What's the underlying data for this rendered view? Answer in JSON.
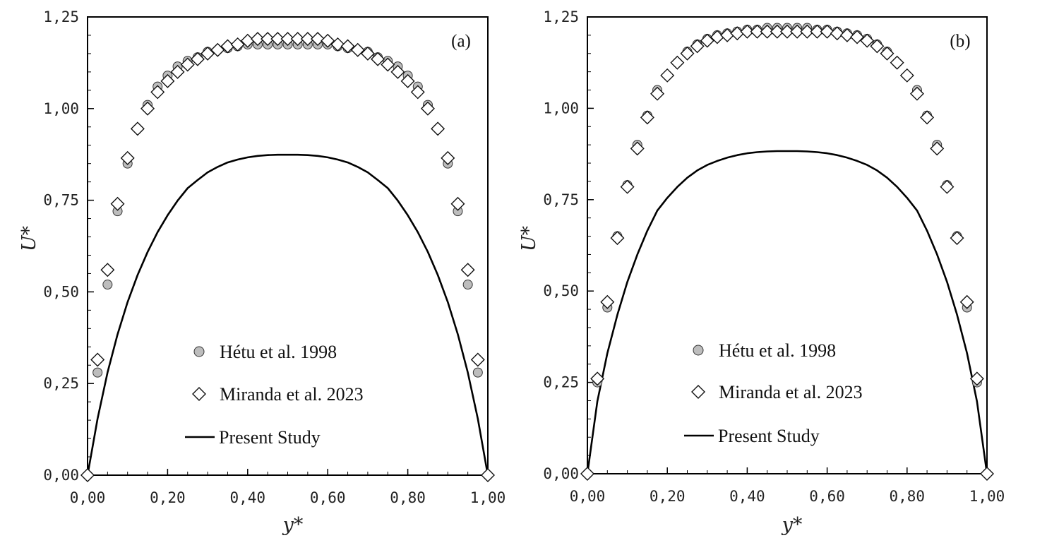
{
  "chart_data": [
    {
      "type": "scatter",
      "panel_label": "(a)",
      "xlabel": "y*",
      "ylabel": "U*",
      "xlim": [
        0,
        1
      ],
      "ylim": [
        0,
        1.25
      ],
      "x_ticks": [
        "0,00",
        "0,20",
        "0,40",
        "0,60",
        "0,80",
        "1,00"
      ],
      "y_ticks": [
        "0,00",
        "0,25",
        "0,50",
        "0,75",
        "1,00",
        "1,25"
      ],
      "legend_placement": "lower-center",
      "series": [
        {
          "name": "Hétu et al. 1998",
          "marker": "circle",
          "color": "#bdbdbd",
          "x": [
            0.0,
            0.025,
            0.05,
            0.075,
            0.1,
            0.125,
            0.15,
            0.175,
            0.2,
            0.225,
            0.25,
            0.275,
            0.3,
            0.325,
            0.35,
            0.375,
            0.4,
            0.425,
            0.45,
            0.475,
            0.5,
            0.525,
            0.55,
            0.575,
            0.6,
            0.625,
            0.65,
            0.675,
            0.7,
            0.725,
            0.75,
            0.775,
            0.8,
            0.825,
            0.85,
            0.875,
            0.9,
            0.925,
            0.95,
            0.975,
            1.0
          ],
          "y": [
            0.0,
            0.28,
            0.52,
            0.72,
            0.85,
            0.945,
            1.01,
            1.06,
            1.09,
            1.115,
            1.13,
            1.14,
            1.155,
            1.16,
            1.165,
            1.17,
            1.175,
            1.175,
            1.175,
            1.175,
            1.175,
            1.175,
            1.175,
            1.175,
            1.175,
            1.17,
            1.165,
            1.16,
            1.155,
            1.14,
            1.13,
            1.115,
            1.09,
            1.06,
            1.01,
            0.945,
            0.85,
            0.72,
            0.52,
            0.28,
            0.0
          ]
        },
        {
          "name": "Miranda et al. 2023",
          "marker": "diamond",
          "color": "#ffffff",
          "x": [
            0.0,
            0.025,
            0.05,
            0.075,
            0.1,
            0.125,
            0.15,
            0.175,
            0.2,
            0.225,
            0.25,
            0.275,
            0.3,
            0.325,
            0.35,
            0.375,
            0.4,
            0.425,
            0.45,
            0.475,
            0.5,
            0.525,
            0.55,
            0.575,
            0.6,
            0.625,
            0.65,
            0.675,
            0.7,
            0.725,
            0.75,
            0.775,
            0.8,
            0.825,
            0.85,
            0.875,
            0.9,
            0.925,
            0.95,
            0.975,
            1.0
          ],
          "y": [
            0.0,
            0.315,
            0.56,
            0.74,
            0.865,
            0.945,
            1.0,
            1.045,
            1.075,
            1.1,
            1.12,
            1.135,
            1.15,
            1.16,
            1.17,
            1.175,
            1.185,
            1.19,
            1.19,
            1.19,
            1.19,
            1.19,
            1.19,
            1.19,
            1.185,
            1.175,
            1.17,
            1.16,
            1.15,
            1.135,
            1.12,
            1.1,
            1.075,
            1.045,
            1.0,
            0.945,
            0.865,
            0.74,
            0.56,
            0.315,
            0.0
          ]
        },
        {
          "name": "Present Study",
          "marker": "line",
          "color": "#000000",
          "x": [
            0.0,
            0.025,
            0.05,
            0.075,
            0.1,
            0.125,
            0.15,
            0.175,
            0.2,
            0.225,
            0.25,
            0.275,
            0.3,
            0.325,
            0.35,
            0.375,
            0.4,
            0.425,
            0.45,
            0.475,
            0.5,
            0.525,
            0.55,
            0.575,
            0.6,
            0.625,
            0.65,
            0.675,
            0.7,
            0.725,
            0.75,
            0.775,
            0.8,
            0.825,
            0.85,
            0.875,
            0.9,
            0.925,
            0.95,
            0.975,
            1.0
          ],
          "y": [
            0.0,
            0.154,
            0.28,
            0.384,
            0.472,
            0.546,
            0.609,
            0.663,
            0.709,
            0.749,
            0.783,
            0.805,
            0.826,
            0.841,
            0.853,
            0.861,
            0.867,
            0.871,
            0.873,
            0.874,
            0.874,
            0.874,
            0.873,
            0.871,
            0.867,
            0.861,
            0.853,
            0.841,
            0.826,
            0.805,
            0.783,
            0.749,
            0.709,
            0.663,
            0.609,
            0.546,
            0.472,
            0.384,
            0.28,
            0.154,
            0.0
          ]
        }
      ]
    },
    {
      "type": "scatter",
      "panel_label": "(b)",
      "xlabel": "y*",
      "ylabel": "U*",
      "xlim": [
        0,
        1
      ],
      "ylim": [
        0,
        1.25
      ],
      "x_ticks": [
        "0,00",
        "0,20",
        "0,40",
        "0,60",
        "0,80",
        "1,00"
      ],
      "y_ticks": [
        "0,00",
        "0,25",
        "0,50",
        "0,75",
        "1,00",
        "1,25"
      ],
      "legend_placement": "lower-center",
      "series": [
        {
          "name": "Hétu et al. 1998",
          "marker": "circle",
          "color": "#bdbdbd",
          "x": [
            0.0,
            0.025,
            0.05,
            0.075,
            0.1,
            0.125,
            0.15,
            0.175,
            0.2,
            0.225,
            0.25,
            0.275,
            0.3,
            0.325,
            0.35,
            0.375,
            0.4,
            0.425,
            0.45,
            0.475,
            0.5,
            0.525,
            0.55,
            0.575,
            0.6,
            0.625,
            0.65,
            0.675,
            0.7,
            0.725,
            0.75,
            0.775,
            0.8,
            0.825,
            0.85,
            0.875,
            0.9,
            0.925,
            0.95,
            0.975,
            1.0
          ],
          "y": [
            0.0,
            0.25,
            0.455,
            0.65,
            0.79,
            0.9,
            0.98,
            1.05,
            1.09,
            1.125,
            1.155,
            1.175,
            1.19,
            1.2,
            1.205,
            1.21,
            1.215,
            1.215,
            1.22,
            1.22,
            1.22,
            1.22,
            1.22,
            1.215,
            1.215,
            1.21,
            1.205,
            1.2,
            1.19,
            1.175,
            1.155,
            1.125,
            1.09,
            1.05,
            0.98,
            0.9,
            0.79,
            0.65,
            0.455,
            0.25,
            0.0
          ]
        },
        {
          "name": "Miranda et al. 2023",
          "marker": "diamond",
          "color": "#ffffff",
          "x": [
            0.0,
            0.025,
            0.05,
            0.075,
            0.1,
            0.125,
            0.15,
            0.175,
            0.2,
            0.225,
            0.25,
            0.275,
            0.3,
            0.325,
            0.35,
            0.375,
            0.4,
            0.425,
            0.45,
            0.475,
            0.5,
            0.525,
            0.55,
            0.575,
            0.6,
            0.625,
            0.65,
            0.675,
            0.7,
            0.725,
            0.75,
            0.775,
            0.8,
            0.825,
            0.85,
            0.875,
            0.9,
            0.925,
            0.95,
            0.975,
            1.0
          ],
          "y": [
            0.0,
            0.26,
            0.47,
            0.645,
            0.785,
            0.89,
            0.975,
            1.04,
            1.09,
            1.125,
            1.15,
            1.17,
            1.185,
            1.195,
            1.2,
            1.205,
            1.21,
            1.21,
            1.21,
            1.21,
            1.21,
            1.21,
            1.21,
            1.21,
            1.21,
            1.205,
            1.2,
            1.195,
            1.185,
            1.17,
            1.15,
            1.125,
            1.09,
            1.04,
            0.975,
            0.89,
            0.785,
            0.645,
            0.47,
            0.26,
            0.0
          ]
        },
        {
          "name": "Present Study",
          "marker": "line",
          "color": "#000000",
          "x": [
            0.0,
            0.025,
            0.05,
            0.075,
            0.1,
            0.125,
            0.15,
            0.175,
            0.2,
            0.225,
            0.25,
            0.275,
            0.3,
            0.325,
            0.35,
            0.375,
            0.4,
            0.425,
            0.45,
            0.475,
            0.5,
            0.525,
            0.55,
            0.575,
            0.6,
            0.625,
            0.65,
            0.675,
            0.7,
            0.725,
            0.75,
            0.775,
            0.8,
            0.825,
            0.85,
            0.875,
            0.9,
            0.925,
            0.95,
            0.975,
            1.0
          ],
          "y": [
            0.0,
            0.198,
            0.33,
            0.435,
            0.525,
            0.6,
            0.665,
            0.72,
            0.755,
            0.785,
            0.81,
            0.83,
            0.845,
            0.856,
            0.865,
            0.872,
            0.877,
            0.88,
            0.882,
            0.883,
            0.883,
            0.883,
            0.882,
            0.88,
            0.877,
            0.872,
            0.865,
            0.856,
            0.845,
            0.83,
            0.81,
            0.785,
            0.755,
            0.72,
            0.665,
            0.6,
            0.525,
            0.435,
            0.33,
            0.198,
            0.0
          ]
        }
      ]
    }
  ]
}
